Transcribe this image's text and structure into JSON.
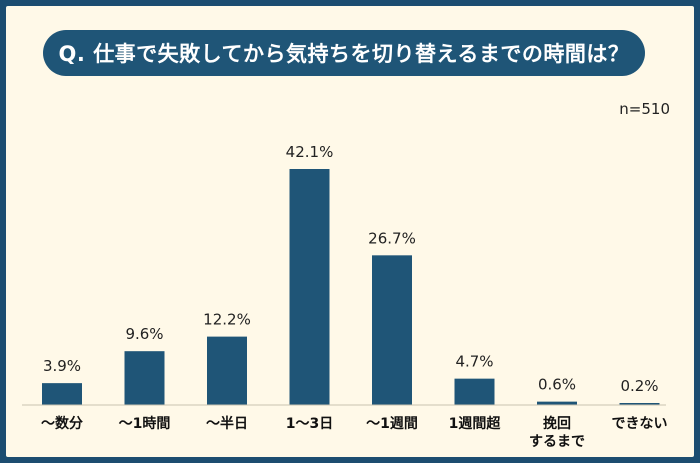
{
  "chart_data": {
    "type": "bar",
    "title": "Q. 仕事で失敗してから気持ちを切り替えるまでの時間は？",
    "sample_size": "n=510",
    "categories": [
      [
        "～数分"
      ],
      [
        "～1時間"
      ],
      [
        "～半日"
      ],
      [
        "1～3日"
      ],
      [
        "～1週間"
      ],
      [
        "1週間超"
      ],
      [
        "挽回",
        "するまで"
      ],
      [
        "できない"
      ]
    ],
    "values": [
      3.9,
      9.6,
      12.2,
      42.1,
      26.7,
      4.7,
      0.6,
      0.2
    ],
    "value_labels": [
      "3.9%",
      "9.6%",
      "12.2%",
      "42.1%",
      "26.7%",
      "4.7%",
      "0.6%",
      "0.2%"
    ],
    "unit": "%",
    "ylim": [
      0,
      42.1
    ],
    "grid": false,
    "bar_color": "#1f5577"
  }
}
